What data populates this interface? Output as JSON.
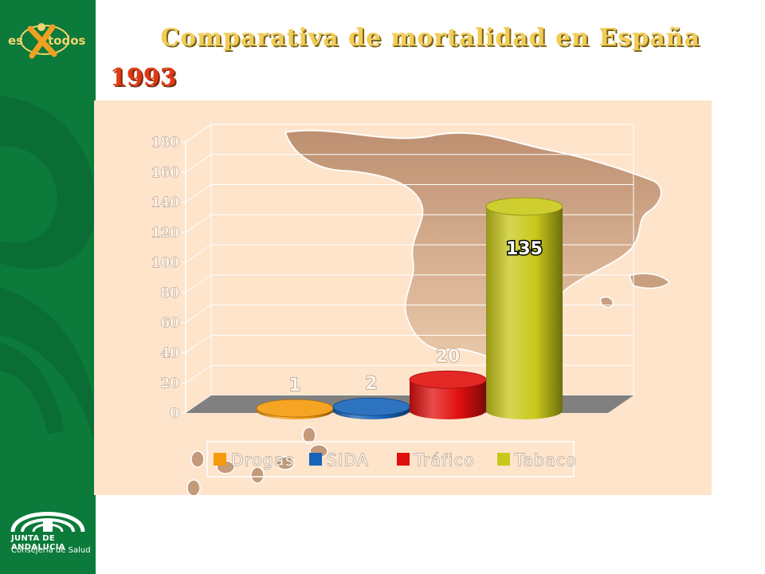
{
  "brand": {
    "top_logo_left": "es",
    "top_logo_right": "todos",
    "bottom_logo_line1": "JUNTA DE ANDALUCIA",
    "bottom_logo_line2": "Consejería de Salud"
  },
  "title": "Comparativa de mortalidad en España",
  "subtitle": "1993",
  "colors": {
    "sidebar": "#0b7a3a",
    "title": "#f2cc55",
    "year": "#e03a12",
    "plot_bg": "#fde4cb",
    "map": "#c4967a"
  },
  "chart_data": {
    "type": "bar",
    "style": "3d-cylinder",
    "categories": [
      "Drogas",
      "SIDA",
      "Tráfico",
      "Tabaco"
    ],
    "values": [
      1,
      2,
      20,
      135
    ],
    "value_labels": [
      "1",
      "2",
      "20",
      "135"
    ],
    "series_colors": [
      "#f59a0c",
      "#1763b8",
      "#e0100e",
      "#c8c81a"
    ],
    "ylim": [
      0,
      180
    ],
    "yticks": [
      "0",
      "20",
      "40",
      "60",
      "80",
      "100",
      "120",
      "140",
      "160",
      "180"
    ],
    "ytick_values": [
      0,
      20,
      40,
      60,
      80,
      100,
      120,
      140,
      160,
      180
    ],
    "legend": [
      "Drogas",
      "SIDA",
      "Tráfico",
      "Tabaco"
    ],
    "legend_position": "bottom",
    "grid": true
  }
}
